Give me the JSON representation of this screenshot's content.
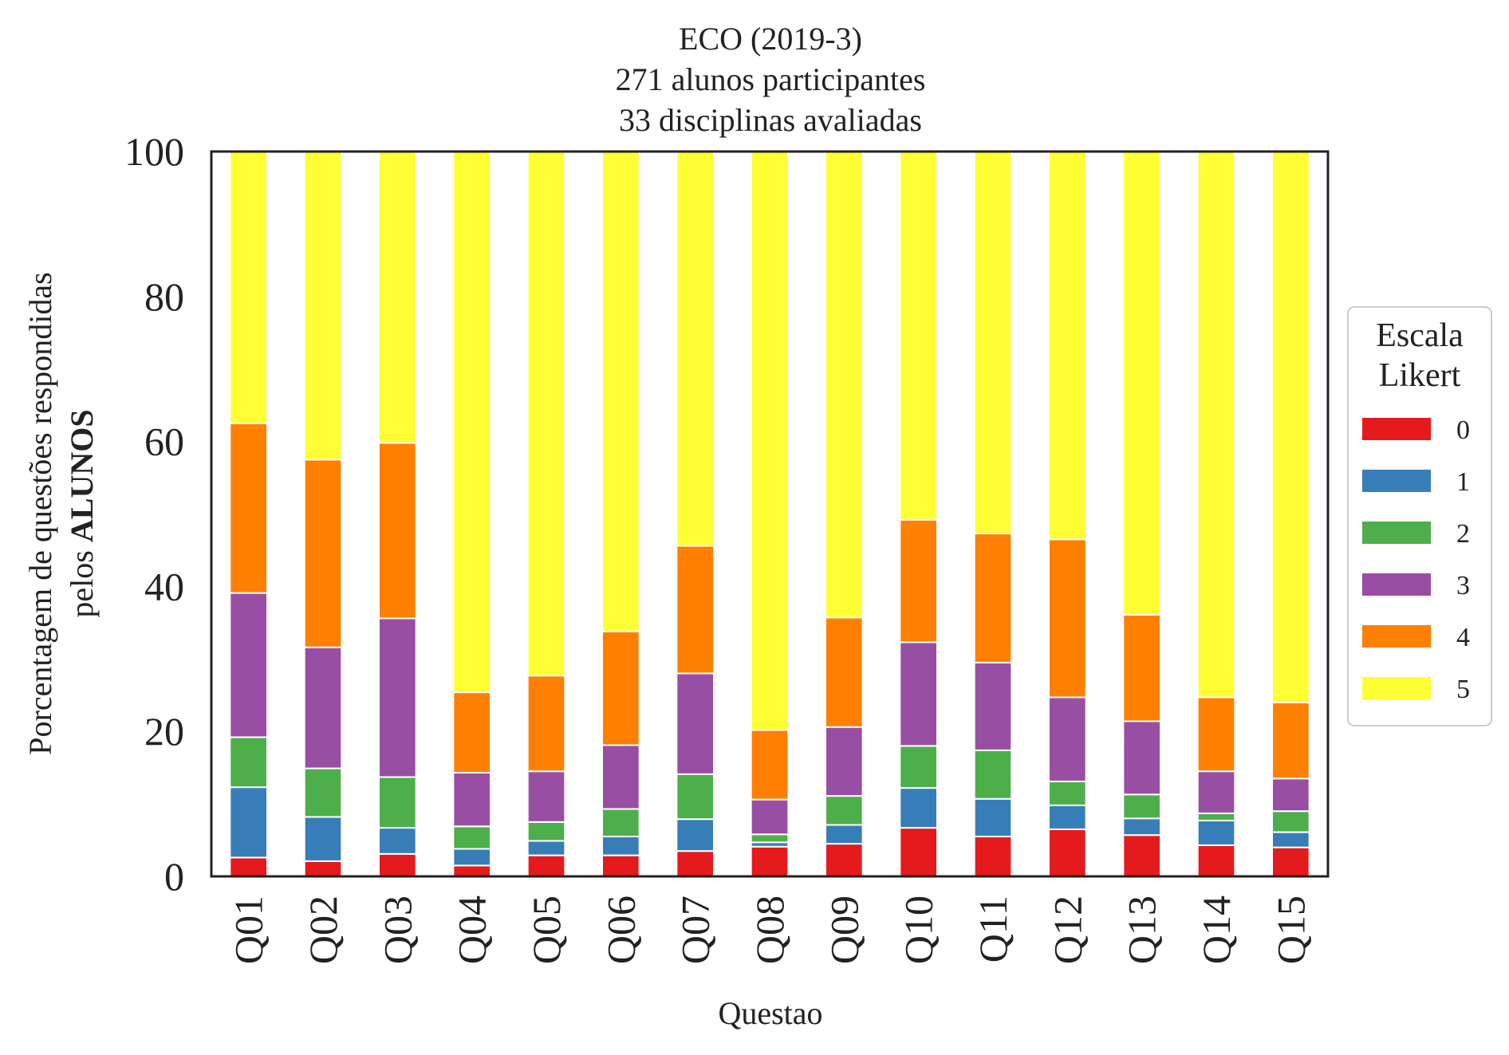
{
  "chart_data": {
    "type": "bar",
    "stacked": true,
    "title_lines": [
      "ECO (2019-3)",
      "271 alunos participantes",
      "33 disciplinas avaliadas"
    ],
    "xlabel": "Questao",
    "ylabel_line1": "Porcentagem de questões respondidas",
    "ylabel_line2_prefix": "pelos ",
    "ylabel_line2_bold": "ALUNOS",
    "ylim": [
      0,
      100
    ],
    "yticks": [
      "0",
      "20",
      "40",
      "60",
      "80",
      "100"
    ],
    "grid": false,
    "legend": {
      "title_lines": [
        "Escala",
        "Likert"
      ],
      "placement": "right-outside",
      "labels": [
        "0",
        "1",
        "2",
        "3",
        "4",
        "5"
      ]
    },
    "categories": [
      "Q01",
      "Q02",
      "Q03",
      "Q04",
      "Q05",
      "Q06",
      "Q07",
      "Q08",
      "Q09",
      "Q10",
      "Q11",
      "Q12",
      "Q13",
      "Q14",
      "Q15"
    ],
    "series": [
      {
        "name": "0",
        "color": "#e41a1c",
        "values": [
          2.6,
          2.1,
          3.1,
          1.5,
          2.9,
          2.9,
          3.5,
          4.1,
          4.5,
          6.7,
          5.5,
          6.5,
          5.7,
          4.3,
          4.0
        ]
      },
      {
        "name": "1",
        "color": "#377eb8",
        "values": [
          9.7,
          6.1,
          3.6,
          2.3,
          2.0,
          2.6,
          4.4,
          0.6,
          2.6,
          5.5,
          5.2,
          3.3,
          2.3,
          3.4,
          2.1
        ]
      },
      {
        "name": "2",
        "color": "#4daf4a",
        "values": [
          6.9,
          6.7,
          7.0,
          3.1,
          2.6,
          3.8,
          6.2,
          1.1,
          4.0,
          5.8,
          6.7,
          3.3,
          3.3,
          1.0,
          2.9
        ]
      },
      {
        "name": "3",
        "color": "#984ea3",
        "values": [
          19.9,
          16.7,
          21.9,
          7.4,
          7.0,
          8.8,
          13.9,
          4.8,
          9.5,
          14.3,
          12.1,
          11.6,
          10.1,
          5.8,
          4.5
        ]
      },
      {
        "name": "4",
        "color": "#ff7f00",
        "values": [
          23.4,
          25.9,
          24.2,
          11.1,
          13.2,
          15.7,
          17.6,
          9.6,
          15.1,
          16.9,
          17.8,
          21.8,
          14.7,
          10.2,
          10.5
        ]
      },
      {
        "name": "5",
        "color": "#ffff33",
        "values": [
          37.5,
          42.5,
          40.2,
          74.6,
          72.3,
          66.2,
          54.4,
          79.8,
          64.3,
          50.8,
          52.7,
          53.5,
          63.9,
          75.3,
          76.0
        ]
      }
    ]
  }
}
